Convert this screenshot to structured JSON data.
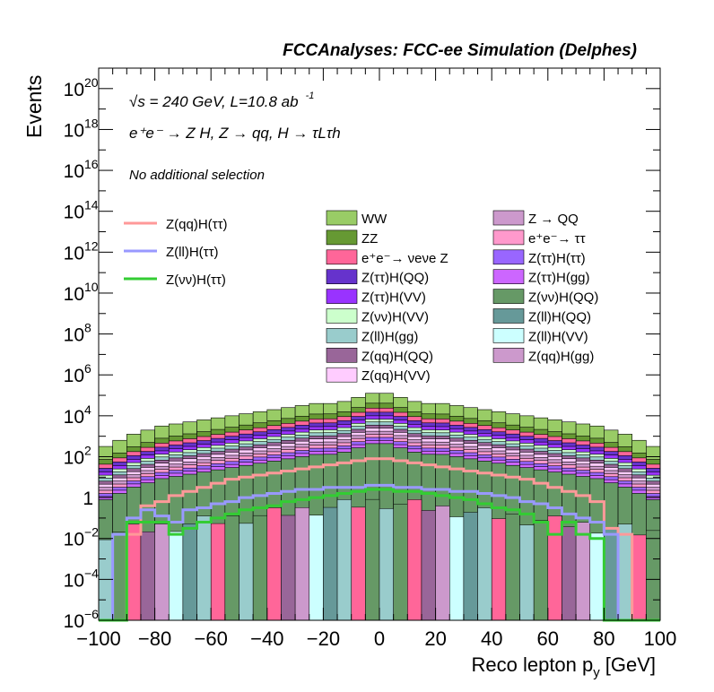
{
  "chart_data": {
    "type": "histogram",
    "title": "FCCAnalyses: FCC-ee Simulation (Delphes)",
    "xlabel": "Reco lepton p",
    "xlabel_sub": "y",
    "xlabel_unit": "[GeV]",
    "ylabel": "Events",
    "xlim": [
      -100,
      100
    ],
    "ylim_log10": [
      -6,
      21
    ],
    "y_scale": "log",
    "x_ticks": [
      "−100",
      "−80",
      "−60",
      "−40",
      "−20",
      "0",
      "20",
      "40",
      "60",
      "80",
      "100"
    ],
    "y_ticks": [
      {
        "exp": 20,
        "label": "10",
        "sup": "20"
      },
      {
        "exp": 18,
        "label": "10",
        "sup": "18"
      },
      {
        "exp": 16,
        "label": "10",
        "sup": "16"
      },
      {
        "exp": 14,
        "label": "10",
        "sup": "14"
      },
      {
        "exp": 12,
        "label": "10",
        "sup": "12"
      },
      {
        "exp": 10,
        "label": "10",
        "sup": "10"
      },
      {
        "exp": 8,
        "label": "10",
        "sup": "8"
      },
      {
        "exp": 6,
        "label": "10",
        "sup": "6"
      },
      {
        "exp": 4,
        "label": "10",
        "sup": "4"
      },
      {
        "exp": 2,
        "label": "10",
        "sup": "2"
      },
      {
        "exp": 0,
        "label": "1",
        "sup": ""
      },
      {
        "exp": -2,
        "label": "10",
        "sup": "−2"
      },
      {
        "exp": -4,
        "label": "10",
        "sup": "−4"
      },
      {
        "exp": -6,
        "label": "10",
        "sup": "−6"
      }
    ],
    "annotations": {
      "energy": "√s = 240 GeV, L=10.8 ab",
      "energy_sup": "-1",
      "process": "e⁺e⁻ → Z H, Z → qq, H → τLτh",
      "selection": "No additional selection"
    },
    "bin_width": 5,
    "bin_centers": [
      -97.5,
      -92.5,
      -87.5,
      -82.5,
      -77.5,
      -72.5,
      -67.5,
      -62.5,
      -57.5,
      -52.5,
      -47.5,
      -42.5,
      -37.5,
      -32.5,
      -27.5,
      -22.5,
      -17.5,
      -12.5,
      -7.5,
      -2.5,
      2.5,
      7.5,
      12.5,
      17.5,
      22.5,
      27.5,
      32.5,
      37.5,
      42.5,
      47.5,
      52.5,
      57.5,
      62.5,
      67.5,
      72.5,
      77.5,
      82.5,
      87.5,
      92.5,
      97.5
    ],
    "stack_total_log10": [
      2.5,
      2.8,
      3.1,
      3.3,
      3.5,
      3.6,
      3.7,
      3.8,
      3.9,
      4.0,
      4.1,
      4.2,
      4.3,
      4.4,
      4.5,
      4.6,
      4.6,
      4.7,
      4.9,
      5.1,
      5.1,
      4.9,
      4.7,
      4.6,
      4.6,
      4.5,
      4.4,
      4.3,
      4.2,
      4.1,
      4.0,
      3.9,
      3.8,
      3.7,
      3.6,
      3.5,
      3.3,
      3.1,
      2.8,
      2.5
    ],
    "backgrounds": [
      {
        "name": "WW",
        "color": "#99CC66"
      },
      {
        "name": "ZZ",
        "color": "#669933"
      },
      {
        "name": "e⁺e⁻→ νeνe Z",
        "color": "#FF6699"
      },
      {
        "name": "Z(ττ)H(QQ)",
        "color": "#6633CC"
      },
      {
        "name": "Z(ττ)H(VV)",
        "color": "#9933FF"
      },
      {
        "name": "Z(νν)H(VV)",
        "color": "#CCFFCC"
      },
      {
        "name": "Z(ll)H(gg)",
        "color": "#99CCCC"
      },
      {
        "name": "Z(qq)H(QQ)",
        "color": "#996699"
      },
      {
        "name": "Z(qq)H(VV)",
        "color": "#FFCCFF"
      },
      {
        "name": "Z → QQ",
        "color": "#CC99CC"
      },
      {
        "name": "e⁺e⁻→ ττ",
        "color": "#FF99CC"
      },
      {
        "name": "Z(ττ)H(ττ)",
        "color": "#9966FF"
      },
      {
        "name": "Z(ττ)H(gg)",
        "color": "#CC66FF"
      },
      {
        "name": "Z(νν)H(QQ)",
        "color": "#669966"
      },
      {
        "name": "Z(ll)H(QQ)",
        "color": "#669999"
      },
      {
        "name": "Z(ll)H(VV)",
        "color": "#CCFFFF"
      },
      {
        "name": "Z(qq)H(gg)",
        "color": "#CC99CC"
      }
    ],
    "signals": [
      {
        "name": "Z(qq)H(ττ)",
        "color": "#FF9999"
      },
      {
        "name": "Z(ll)H(ττ)",
        "color": "#9999FF"
      },
      {
        "name": "Z(νν)H(ττ)",
        "color": "#33CC33"
      }
    ],
    "signal_log10": {
      "Z(qq)H(ττ)": [
        -6.5,
        -6.5,
        -1.8,
        -0.4,
        -0.2,
        0.1,
        0.3,
        0.5,
        0.7,
        0.9,
        1.0,
        1.1,
        1.2,
        1.3,
        1.4,
        1.5,
        1.6,
        1.7,
        1.8,
        1.9,
        1.9,
        1.8,
        1.7,
        1.6,
        1.5,
        1.4,
        1.3,
        1.2,
        1.1,
        1.0,
        0.9,
        0.7,
        0.5,
        0.3,
        0.1,
        -0.2,
        -1.5,
        -1.8,
        -6.5,
        -6.5
      ],
      "Z(ll)H(ττ)": [
        -6.5,
        -1.8,
        -1.0,
        -0.6,
        -0.9,
        -1.2,
        -0.6,
        -0.5,
        -0.3,
        -0.2,
        0.0,
        0.1,
        0.2,
        0.3,
        0.4,
        0.4,
        0.5,
        0.5,
        0.5,
        0.6,
        0.6,
        0.5,
        0.5,
        0.4,
        0.4,
        0.3,
        0.3,
        0.2,
        0.1,
        0.0,
        -0.2,
        -0.3,
        -0.5,
        -0.8,
        -1.0,
        -1.2,
        -1.8,
        -6.5,
        -6.5,
        -6.5
      ],
      "Z(νν)H(ττ)": [
        -6.5,
        -6.5,
        -1.2,
        -1.2,
        -1.2,
        -1.8,
        -1.5,
        -1.2,
        -1.0,
        -0.8,
        -0.6,
        -0.5,
        -0.4,
        -0.2,
        -0.1,
        0.0,
        0.1,
        0.2,
        0.3,
        0.4,
        0.4,
        0.3,
        0.3,
        0.2,
        0.1,
        0.0,
        -0.1,
        -0.3,
        -0.5,
        -0.6,
        -0.8,
        -1.2,
        -1.8,
        -1.2,
        -1.8,
        -2.0,
        -6.5,
        -6.5,
        -6.5,
        -6.5
      ]
    }
  }
}
